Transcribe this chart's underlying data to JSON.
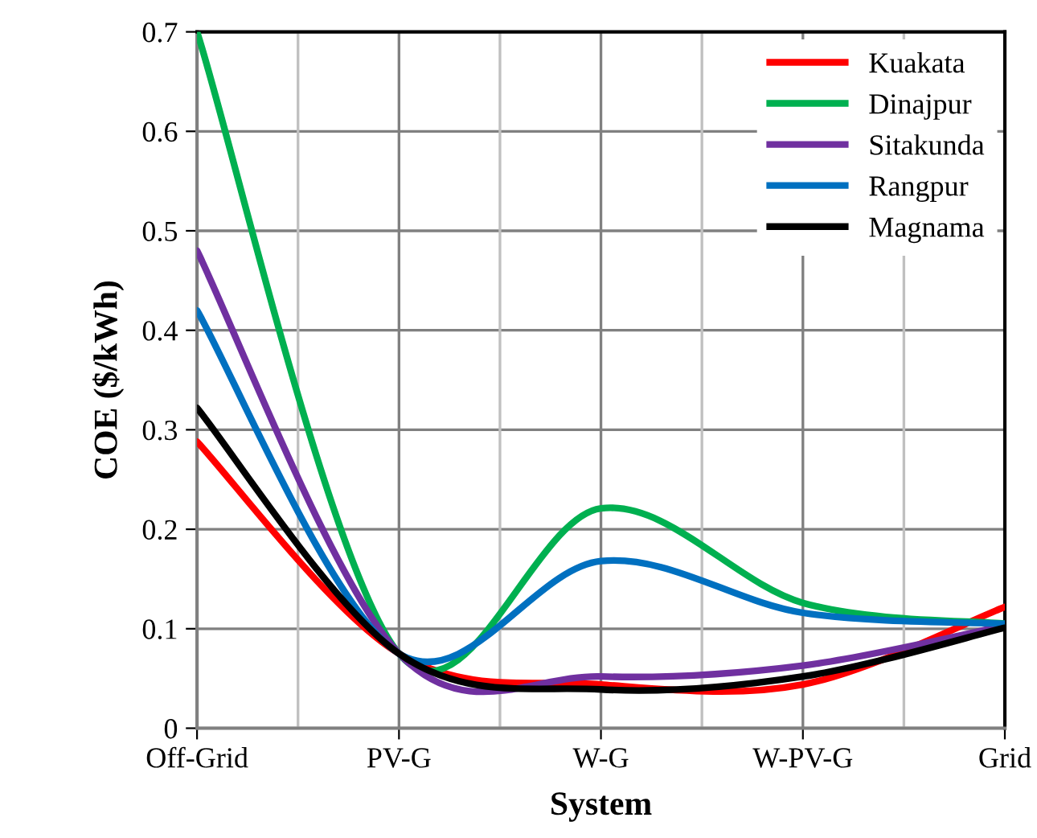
{
  "chart_data": {
    "type": "line",
    "xlabel": "System",
    "ylabel": "COE ($/kWh)",
    "categories": [
      "Off-Grid",
      "PV-G",
      "W-G",
      "W-PV-G",
      "Grid"
    ],
    "series": [
      {
        "name": "Kuakata",
        "color": "#ff0000",
        "values": [
          0.288,
          0.075,
          0.044,
          0.044,
          0.122
        ]
      },
      {
        "name": "Dinajpur",
        "color": "#00b050",
        "values": [
          0.7,
          0.075,
          0.221,
          0.126,
          0.105
        ]
      },
      {
        "name": "Sitakunda",
        "color": "#7030a0",
        "values": [
          0.48,
          0.075,
          0.052,
          0.063,
          0.103
        ]
      },
      {
        "name": "Rangpur",
        "color": "#0070c0",
        "values": [
          0.42,
          0.075,
          0.168,
          0.116,
          0.105
        ]
      },
      {
        "name": "Magnama",
        "color": "#000000",
        "values": [
          0.322,
          0.075,
          0.039,
          0.052,
          0.101
        ]
      }
    ],
    "ylim": [
      0,
      0.7
    ],
    "yticks": [
      0,
      0.1,
      0.2,
      0.3,
      0.4,
      0.5,
      0.6,
      0.7
    ],
    "grid": true,
    "legend": "top right",
    "marker": "none",
    "line_style": "solid"
  }
}
